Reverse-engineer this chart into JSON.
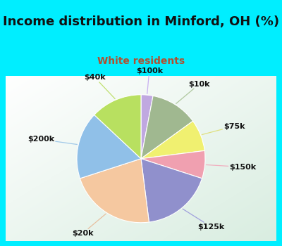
{
  "title": "Income distribution in Minford, OH (%)",
  "subtitle": "White residents",
  "title_color": "#111111",
  "subtitle_color": "#b05030",
  "background_cyan": "#00eeff",
  "background_inner": "#dff0e8",
  "labels": [
    "$100k",
    "$10k",
    "$75k",
    "$150k",
    "$125k",
    "$20k",
    "$200k",
    "$40k"
  ],
  "values": [
    3,
    12,
    8,
    7,
    18,
    22,
    17,
    13
  ],
  "colors": [
    "#c0a8e0",
    "#a0b890",
    "#f0f070",
    "#f0a0b0",
    "#9090cc",
    "#f5c8a0",
    "#90c0e8",
    "#b8e060"
  ],
  "wedge_edge_color": "#ffffff",
  "wedge_edge_width": 0.8,
  "label_fontsize": 8.0,
  "title_fontsize": 13,
  "subtitle_fontsize": 10
}
